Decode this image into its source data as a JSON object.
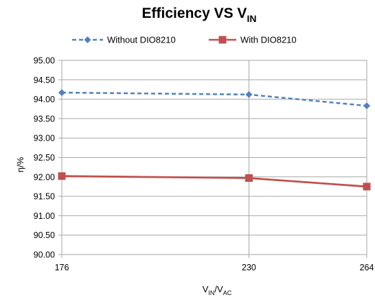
{
  "chart_data": {
    "type": "line",
    "title_main": "Efficiency VS V",
    "title_sub": "IN",
    "x": [
      176,
      230,
      264
    ],
    "x_tick_labels": [
      "176",
      "230",
      "264"
    ],
    "y_tick_labels": [
      "90.00",
      "90.50",
      "91.00",
      "91.50",
      "92.00",
      "92.50",
      "93.00",
      "93.50",
      "94.00",
      "94.50",
      "95.00"
    ],
    "ylim": [
      90.0,
      95.0
    ],
    "ystep": 0.5,
    "ylabel": "η/%",
    "xlabel_parts": [
      "V",
      "IN",
      "/V",
      "AC"
    ],
    "grid": true,
    "legend_position": "top",
    "series": [
      {
        "name": "Without DIO8210",
        "values": [
          94.17,
          94.12,
          93.83
        ],
        "color": "#4f81bd",
        "line_style": "dashed",
        "marker": "diamond"
      },
      {
        "name": "With DIO8210",
        "values": [
          92.02,
          91.97,
          91.75
        ],
        "color": "#c0504d",
        "line_style": "solid",
        "marker": "square"
      }
    ]
  }
}
